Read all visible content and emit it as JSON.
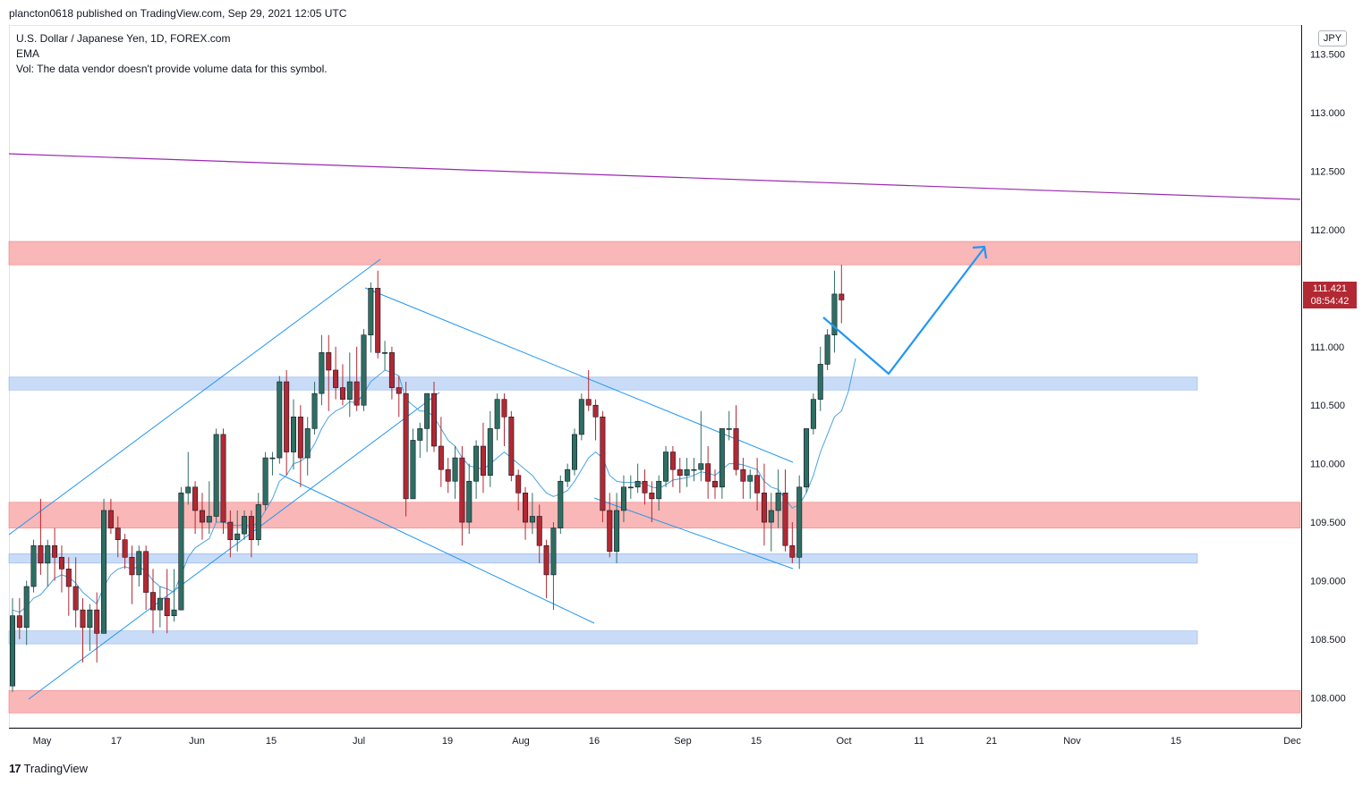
{
  "header": {
    "published": "plancton0618 published on TradingView.com, Sep 29, 2021 12:05 UTC"
  },
  "legend": {
    "symbol": "U.S. Dollar / Japanese Yen, 1D, FOREX.com",
    "indicator": "EMA",
    "volume": "Vol: The data vendor doesn't provide volume data for this symbol."
  },
  "currency_badge": "JPY",
  "last_price": {
    "price": "111.421",
    "countdown": "08:54:42"
  },
  "brand": {
    "logo": "17",
    "name": "TradingView"
  },
  "colors": {
    "up": "#2d6f63",
    "down": "#b22833",
    "ema": "#4aa3df",
    "trend": "#2196f3",
    "resistance": "#9c27b0",
    "red_zone": "#f8a5a5",
    "blue_zone": "#bcd3f5"
  },
  "chart_data": {
    "type": "candlestick",
    "title": "U.S. Dollar / Japanese Yen, 1D, FOREX.com",
    "ylim": [
      107.75,
      113.75
    ],
    "y_ticks": [
      "113.500",
      "113.000",
      "112.500",
      "112.000",
      "111.500",
      "111.000",
      "110.500",
      "110.000",
      "109.500",
      "109.000",
      "108.500",
      "108.000"
    ],
    "x_ticks": [
      "May",
      "17",
      "Jun",
      "15",
      "Jul",
      "19",
      "Aug",
      "16",
      "Sep",
      "15",
      "Oct",
      "11",
      "21",
      "Nov",
      "15",
      "Dec"
    ],
    "zones": [
      {
        "color": "red",
        "low": 111.7,
        "high": 111.9
      },
      {
        "color": "blue",
        "low": 110.63,
        "high": 110.74
      },
      {
        "color": "red",
        "low": 109.45,
        "high": 109.67
      },
      {
        "color": "blue",
        "low": 109.15,
        "high": 109.23
      },
      {
        "color": "blue",
        "low": 108.46,
        "high": 108.57
      },
      {
        "color": "red",
        "low": 107.87,
        "high": 108.06
      }
    ],
    "candles": [
      [
        108.1,
        108.85,
        108.05,
        108.7
      ],
      [
        108.7,
        108.85,
        108.5,
        108.6
      ],
      [
        108.6,
        109.0,
        108.45,
        108.95
      ],
      [
        108.95,
        109.35,
        108.9,
        109.3
      ],
      [
        109.3,
        109.7,
        109.05,
        109.15
      ],
      [
        109.15,
        109.35,
        108.95,
        109.3
      ],
      [
        109.3,
        109.45,
        109.0,
        109.2
      ],
      [
        109.2,
        109.3,
        108.9,
        109.1
      ],
      [
        109.1,
        109.2,
        108.7,
        108.95
      ],
      [
        108.95,
        109.2,
        108.6,
        108.75
      ],
      [
        108.75,
        108.85,
        108.3,
        108.6
      ],
      [
        108.6,
        108.8,
        108.4,
        108.75
      ],
      [
        108.75,
        108.9,
        108.3,
        108.55
      ],
      [
        108.55,
        109.7,
        108.55,
        109.6
      ],
      [
        109.6,
        109.7,
        109.4,
        109.45
      ],
      [
        109.45,
        109.55,
        109.2,
        109.35
      ],
      [
        109.35,
        109.4,
        109.1,
        109.2
      ],
      [
        109.2,
        109.3,
        108.8,
        109.05
      ],
      [
        109.05,
        109.3,
        108.95,
        109.25
      ],
      [
        109.25,
        109.3,
        108.75,
        108.9
      ],
      [
        108.9,
        109.1,
        108.55,
        108.75
      ],
      [
        108.75,
        108.95,
        108.6,
        108.85
      ],
      [
        108.85,
        109.1,
        108.55,
        108.7
      ],
      [
        108.7,
        109.1,
        108.65,
        108.75
      ],
      [
        108.75,
        109.8,
        108.75,
        109.75
      ],
      [
        109.75,
        110.1,
        109.65,
        109.8
      ],
      [
        109.8,
        109.85,
        109.4,
        109.6
      ],
      [
        109.6,
        109.75,
        109.35,
        109.5
      ],
      [
        109.5,
        109.85,
        109.4,
        109.55
      ],
      [
        109.55,
        110.3,
        109.5,
        110.25
      ],
      [
        110.25,
        110.3,
        109.4,
        109.5
      ],
      [
        109.5,
        109.6,
        109.2,
        109.35
      ],
      [
        109.35,
        109.6,
        109.25,
        109.4
      ],
      [
        109.4,
        109.6,
        109.35,
        109.55
      ],
      [
        109.55,
        109.6,
        109.2,
        109.35
      ],
      [
        109.35,
        109.75,
        109.3,
        109.65
      ],
      [
        109.65,
        110.1,
        109.6,
        110.05
      ],
      [
        110.05,
        110.1,
        109.9,
        110.05
      ],
      [
        110.05,
        110.75,
        110.0,
        110.7
      ],
      [
        110.7,
        110.8,
        109.9,
        110.1
      ],
      [
        110.1,
        110.55,
        109.95,
        110.4
      ],
      [
        110.4,
        110.5,
        109.8,
        110.05
      ],
      [
        110.05,
        110.4,
        109.9,
        110.3
      ],
      [
        110.3,
        110.7,
        110.25,
        110.6
      ],
      [
        110.6,
        111.1,
        110.5,
        110.95
      ],
      [
        110.95,
        111.1,
        110.45,
        110.8
      ],
      [
        110.8,
        111.0,
        110.55,
        110.65
      ],
      [
        110.65,
        110.85,
        110.5,
        110.55
      ],
      [
        110.55,
        110.95,
        110.4,
        110.7
      ],
      [
        110.7,
        111.0,
        110.45,
        110.5
      ],
      [
        110.5,
        111.15,
        110.45,
        111.1
      ],
      [
        111.1,
        111.55,
        110.95,
        111.5
      ],
      [
        111.5,
        111.65,
        110.9,
        110.95
      ],
      [
        110.95,
        111.05,
        110.8,
        110.95
      ],
      [
        110.95,
        111.0,
        110.55,
        110.65
      ],
      [
        110.65,
        110.75,
        110.4,
        110.6
      ],
      [
        110.6,
        110.7,
        109.55,
        109.7
      ],
      [
        109.7,
        110.3,
        109.7,
        110.2
      ],
      [
        110.2,
        110.35,
        110.05,
        110.3
      ],
      [
        110.3,
        110.55,
        110.1,
        110.6
      ],
      [
        110.6,
        110.7,
        110.1,
        110.15
      ],
      [
        110.15,
        110.4,
        109.8,
        109.95
      ],
      [
        109.95,
        110.05,
        109.75,
        109.85
      ],
      [
        109.85,
        110.15,
        109.7,
        110.05
      ],
      [
        110.05,
        110.15,
        109.3,
        109.5
      ],
      [
        109.5,
        110.0,
        109.4,
        109.85
      ],
      [
        109.85,
        110.2,
        109.7,
        110.15
      ],
      [
        110.15,
        110.35,
        109.75,
        109.9
      ],
      [
        109.9,
        110.45,
        109.8,
        110.3
      ],
      [
        110.3,
        110.6,
        110.2,
        110.55
      ],
      [
        110.55,
        110.6,
        110.15,
        110.4
      ],
      [
        110.4,
        110.45,
        109.85,
        109.9
      ],
      [
        109.9,
        109.95,
        109.6,
        109.75
      ],
      [
        109.75,
        109.8,
        109.35,
        109.5
      ],
      [
        109.5,
        109.75,
        109.4,
        109.55
      ],
      [
        109.55,
        109.65,
        109.15,
        109.3
      ],
      [
        109.3,
        109.35,
        108.85,
        109.05
      ],
      [
        109.05,
        109.5,
        108.75,
        109.45
      ],
      [
        109.45,
        109.9,
        109.4,
        109.85
      ],
      [
        109.85,
        110.0,
        109.8,
        109.95
      ],
      [
        109.95,
        110.3,
        109.9,
        110.25
      ],
      [
        110.25,
        110.6,
        110.2,
        110.55
      ],
      [
        110.55,
        110.8,
        110.45,
        110.5
      ],
      [
        110.5,
        110.55,
        110.2,
        110.4
      ],
      [
        110.4,
        110.45,
        109.5,
        109.6
      ],
      [
        109.6,
        109.75,
        109.2,
        109.25
      ],
      [
        109.25,
        109.75,
        109.15,
        109.6
      ],
      [
        109.6,
        109.9,
        109.5,
        109.8
      ],
      [
        109.8,
        109.9,
        109.7,
        109.8
      ],
      [
        109.8,
        110.0,
        109.75,
        109.85
      ],
      [
        109.85,
        109.95,
        109.65,
        109.75
      ],
      [
        109.75,
        109.85,
        109.5,
        109.7
      ],
      [
        109.7,
        109.9,
        109.6,
        109.85
      ],
      [
        109.85,
        110.15,
        109.8,
        110.1
      ],
      [
        110.1,
        110.15,
        109.8,
        109.95
      ],
      [
        109.95,
        110.05,
        109.75,
        109.9
      ],
      [
        109.9,
        110.05,
        109.8,
        109.95
      ],
      [
        109.95,
        110.05,
        109.85,
        109.95
      ],
      [
        109.95,
        110.45,
        109.85,
        110.0
      ],
      [
        110.0,
        110.15,
        109.7,
        109.85
      ],
      [
        109.85,
        109.95,
        109.7,
        109.8
      ],
      [
        109.8,
        110.3,
        109.7,
        110.3
      ],
      [
        110.3,
        110.45,
        110.2,
        110.3
      ],
      [
        110.3,
        110.5,
        109.9,
        109.95
      ],
      [
        109.95,
        110.05,
        109.7,
        109.85
      ],
      [
        109.85,
        109.95,
        109.7,
        109.9
      ],
      [
        109.9,
        110.05,
        109.6,
        109.75
      ],
      [
        109.75,
        110.0,
        109.3,
        109.5
      ],
      [
        109.5,
        109.75,
        109.25,
        109.6
      ],
      [
        109.6,
        109.95,
        109.45,
        109.75
      ],
      [
        109.75,
        109.95,
        109.25,
        109.3
      ],
      [
        109.3,
        109.5,
        109.15,
        109.2
      ],
      [
        109.2,
        109.9,
        109.1,
        109.8
      ],
      [
        109.8,
        110.3,
        109.75,
        110.3
      ],
      [
        110.3,
        110.6,
        110.25,
        110.55
      ],
      [
        110.55,
        111.0,
        110.45,
        110.85
      ],
      [
        110.85,
        111.15,
        110.8,
        111.1
      ],
      [
        111.1,
        111.65,
        110.95,
        111.45
      ],
      [
        111.45,
        111.7,
        111.2,
        111.4
      ]
    ],
    "ema": [
      108.75,
      108.73,
      108.78,
      108.85,
      108.88,
      108.95,
      109.02,
      109.05,
      109.03,
      108.98,
      108.9,
      108.85,
      108.8,
      108.95,
      109.05,
      109.1,
      109.12,
      109.1,
      109.12,
      109.08,
      109.0,
      108.95,
      108.93,
      108.9,
      109.05,
      109.2,
      109.28,
      109.32,
      109.36,
      109.5,
      109.5,
      109.48,
      109.47,
      109.48,
      109.46,
      109.5,
      109.6,
      109.7,
      109.85,
      109.9,
      110.0,
      110.02,
      110.07,
      110.17,
      110.3,
      110.4,
      110.45,
      110.48,
      110.53,
      110.52,
      110.6,
      110.7,
      110.75,
      110.8,
      110.78,
      110.75,
      110.55,
      110.5,
      110.45,
      110.45,
      110.4,
      110.3,
      110.2,
      110.15,
      110.05,
      109.98,
      109.97,
      109.95,
      110.0,
      110.05,
      110.1,
      110.05,
      110.0,
      109.95,
      109.9,
      109.82,
      109.75,
      109.72,
      109.74,
      109.77,
      109.85,
      109.95,
      110.05,
      110.1,
      110.05,
      109.9,
      109.85,
      109.84,
      109.84,
      109.84,
      109.83,
      109.8,
      109.79,
      109.82,
      109.86,
      109.87,
      109.88,
      109.9,
      109.93,
      109.92,
      109.9,
      109.95,
      110.0,
      110.0,
      109.99,
      109.97,
      109.95,
      109.85,
      109.8,
      109.78,
      109.7,
      109.62,
      109.65,
      109.75,
      109.9,
      110.1,
      110.25,
      110.4,
      110.45
    ]
  }
}
